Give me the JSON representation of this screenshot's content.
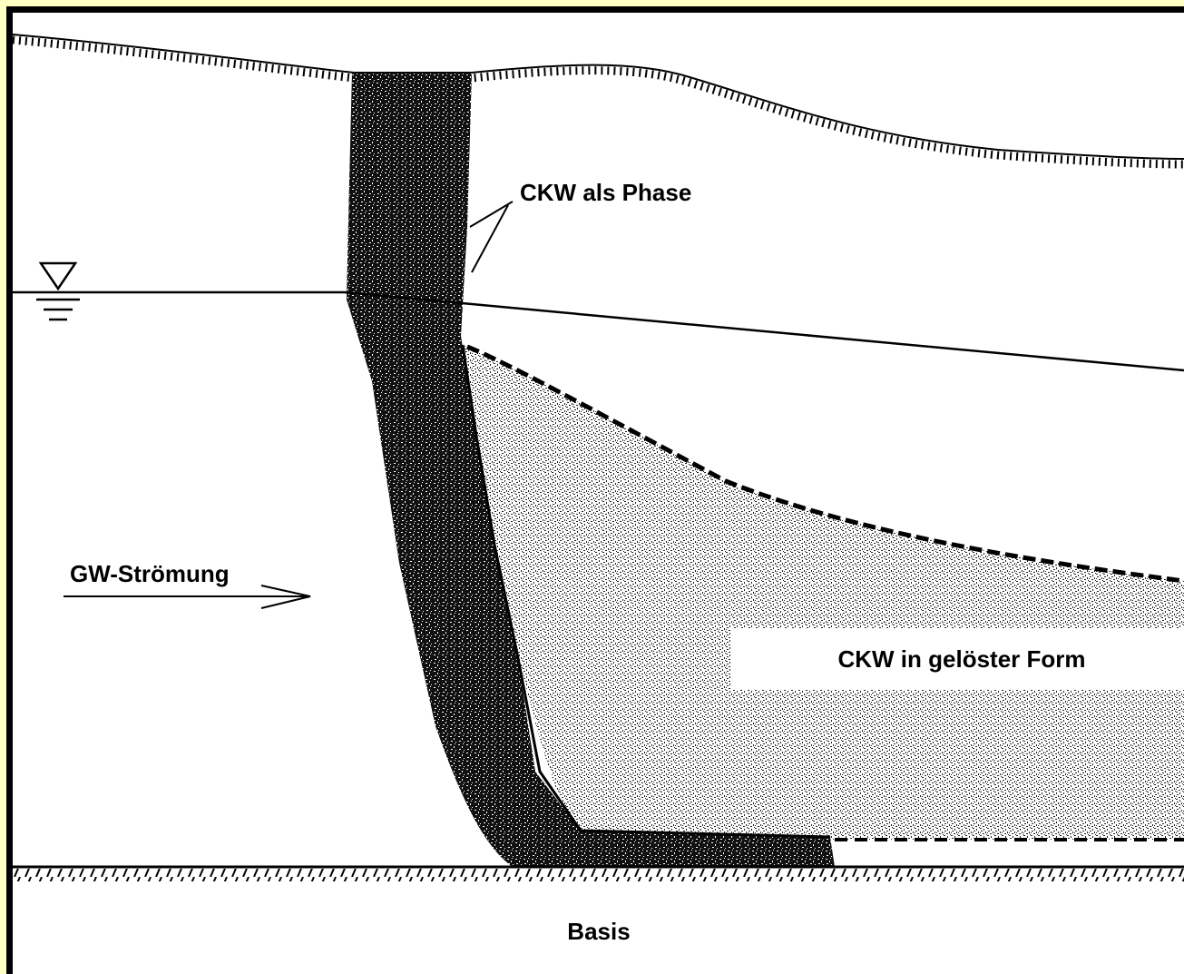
{
  "labels": {
    "phase": "CKW als Phase",
    "flow": "GW-Strömung",
    "dissolved": "CKW in gelöster Form",
    "base": "Basis"
  }
}
